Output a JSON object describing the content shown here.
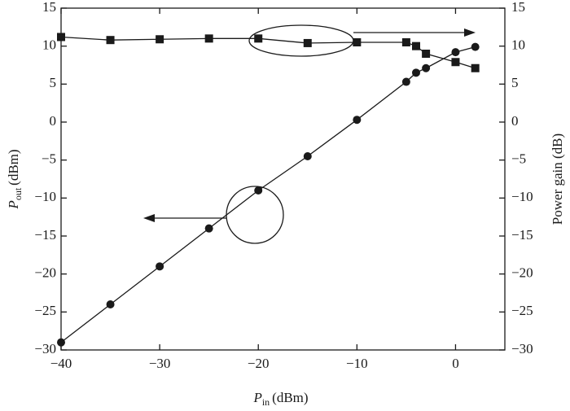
{
  "chart_data": {
    "type": "line",
    "x_label": {
      "main": "P",
      "sub": "in",
      "unit": "(dBm)"
    },
    "y_label": {
      "main": "P",
      "sub": "out",
      "unit": "(dBm)"
    },
    "y2_label": "Power gain (dB)",
    "x": [
      -40,
      -35,
      -30,
      -25,
      -20,
      -15,
      -10,
      -5,
      -4,
      -3,
      0,
      2
    ],
    "series": [
      {
        "marker": "circle",
        "color": "#1a1a1a",
        "axis": "y",
        "values": [
          -29,
          -24,
          -19,
          -14,
          -9,
          -4.5,
          0.3,
          5.3,
          6.5,
          7.1,
          9.2,
          9.9
        ]
      },
      {
        "marker": "square",
        "color": "#1a1a1a",
        "axis": "y2",
        "values": [
          11.2,
          10.8,
          10.9,
          11.0,
          11.0,
          10.4,
          10.5,
          10.5,
          10.0,
          9.0,
          7.9,
          7.1
        ]
      }
    ],
    "xlim": [
      -40,
      5
    ],
    "xticks": [
      {
        "value": -40,
        "label": "−40"
      },
      {
        "value": -30,
        "label": "−30"
      },
      {
        "value": -20,
        "label": "−20"
      },
      {
        "value": -10,
        "label": "−10"
      },
      0
    ],
    "ylim": [
      -30,
      15
    ],
    "yticks": [
      15,
      10,
      5,
      0,
      {
        "value": -5,
        "label": "−5"
      },
      {
        "value": -10,
        "label": "−10"
      },
      {
        "value": -15,
        "label": "−15"
      },
      {
        "value": -20,
        "label": "−20"
      },
      {
        "value": -25,
        "label": "−25"
      },
      {
        "value": -30,
        "label": "−30"
      }
    ],
    "y2lim": [
      -30,
      15
    ],
    "y2ticks": [
      15,
      10,
      5,
      0,
      {
        "value": -5,
        "label": "−5"
      },
      {
        "value": -10,
        "label": "−10"
      },
      {
        "value": -15,
        "label": "−15"
      },
      {
        "value": -20,
        "label": "−20"
      },
      {
        "value": -25,
        "label": "−25"
      },
      {
        "value": -30,
        "label": "−30"
      }
    ],
    "grid": false
  }
}
